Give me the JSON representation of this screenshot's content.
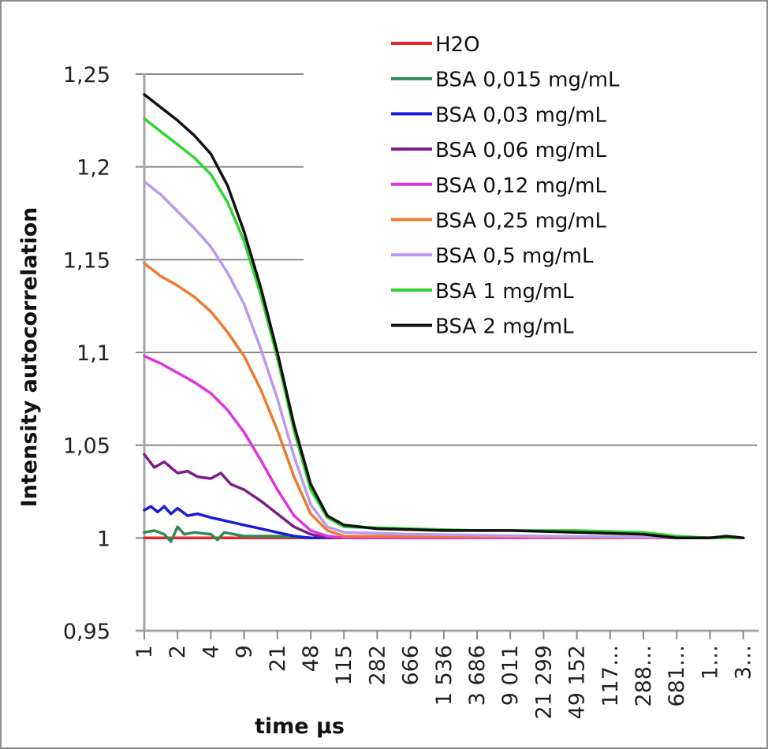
{
  "chart_data": {
    "type": "line",
    "title": "",
    "xlabel": "time µs",
    "ylabel": "Intensity autocorrelation",
    "ylim": [
      0.95,
      1.25
    ],
    "y_ticks": [
      {
        "value": 1.25,
        "label": "1,25"
      },
      {
        "value": 1.2,
        "label": "1,2"
      },
      {
        "value": 1.15,
        "label": "1,15"
      },
      {
        "value": 1.1,
        "label": "1,1"
      },
      {
        "value": 1.05,
        "label": "1,05"
      },
      {
        "value": 1.0,
        "label": "1"
      },
      {
        "value": 0.95,
        "label": "0,95"
      }
    ],
    "x_scale": "log (category index)",
    "x_tick_labels": [
      "1",
      "2",
      "4",
      "9",
      "21",
      "48",
      "115",
      "282",
      "666",
      "1 536",
      "3 686",
      "9 011",
      "21 299",
      "49 152",
      "117…",
      "288…",
      "681…",
      "1…",
      "3…"
    ],
    "grid": "horizontal",
    "legend_position": "top-right",
    "series": [
      {
        "name": "H2O",
        "color": "#e8262a",
        "points": [
          [
            0,
            1.0
          ],
          [
            18,
            1.0
          ]
        ]
      },
      {
        "name": "BSA 0,015 mg/mL",
        "color": "#2e8b57",
        "points": [
          [
            0,
            1.003
          ],
          [
            0.3,
            1.004
          ],
          [
            0.6,
            1.002
          ],
          [
            0.8,
            0.998
          ],
          [
            1,
            1.006
          ],
          [
            1.2,
            1.002
          ],
          [
            1.5,
            1.003
          ],
          [
            2,
            1.002
          ],
          [
            2.2,
            0.999
          ],
          [
            2.4,
            1.003
          ],
          [
            3,
            1.001
          ],
          [
            4,
            1.001
          ],
          [
            5,
            1.0
          ],
          [
            18,
            1.0
          ]
        ]
      },
      {
        "name": "BSA 0,03 mg/mL",
        "color": "#1a1adb",
        "points": [
          [
            0,
            1.015
          ],
          [
            0.2,
            1.017
          ],
          [
            0.4,
            1.014
          ],
          [
            0.6,
            1.017
          ],
          [
            0.8,
            1.013
          ],
          [
            1,
            1.016
          ],
          [
            1.3,
            1.012
          ],
          [
            1.6,
            1.013
          ],
          [
            2,
            1.011
          ],
          [
            2.5,
            1.009
          ],
          [
            3,
            1.007
          ],
          [
            3.5,
            1.005
          ],
          [
            4,
            1.003
          ],
          [
            4.5,
            1.001
          ],
          [
            5,
            1.0
          ],
          [
            18,
            1.0
          ]
        ]
      },
      {
        "name": "BSA 0,06 mg/mL",
        "color": "#7b1f84",
        "points": [
          [
            0,
            1.045
          ],
          [
            0.3,
            1.038
          ],
          [
            0.6,
            1.041
          ],
          [
            1,
            1.035
          ],
          [
            1.3,
            1.036
          ],
          [
            1.6,
            1.033
          ],
          [
            2,
            1.032
          ],
          [
            2.3,
            1.035
          ],
          [
            2.6,
            1.029
          ],
          [
            3,
            1.026
          ],
          [
            3.5,
            1.02
          ],
          [
            4,
            1.013
          ],
          [
            4.5,
            1.006
          ],
          [
            5,
            1.002
          ],
          [
            5.5,
            1.0
          ],
          [
            18,
            1.0
          ]
        ]
      },
      {
        "name": "BSA 0,12 mg/mL",
        "color": "#e033e0",
        "points": [
          [
            0,
            1.098
          ],
          [
            0.5,
            1.094
          ],
          [
            1,
            1.089
          ],
          [
            1.5,
            1.084
          ],
          [
            2,
            1.078
          ],
          [
            2.5,
            1.069
          ],
          [
            3,
            1.057
          ],
          [
            3.5,
            1.042
          ],
          [
            4,
            1.026
          ],
          [
            4.5,
            1.012
          ],
          [
            5,
            1.004
          ],
          [
            5.5,
            1.001
          ],
          [
            6,
            1.0
          ],
          [
            18,
            1.0
          ]
        ]
      },
      {
        "name": "BSA 0,25 mg/mL",
        "color": "#ef7a2f",
        "points": [
          [
            0,
            1.148
          ],
          [
            0.5,
            1.141
          ],
          [
            1,
            1.136
          ],
          [
            1.5,
            1.13
          ],
          [
            2,
            1.122
          ],
          [
            2.5,
            1.111
          ],
          [
            3,
            1.098
          ],
          [
            3.5,
            1.08
          ],
          [
            4,
            1.058
          ],
          [
            4.5,
            1.033
          ],
          [
            5,
            1.013
          ],
          [
            5.5,
            1.004
          ],
          [
            6,
            1.001
          ],
          [
            18,
            1.0
          ]
        ]
      },
      {
        "name": "BSA 0,5 mg/mL",
        "color": "#b89af0",
        "points": [
          [
            0,
            1.192
          ],
          [
            0.5,
            1.185
          ],
          [
            1,
            1.176
          ],
          [
            1.5,
            1.167
          ],
          [
            2,
            1.157
          ],
          [
            2.5,
            1.143
          ],
          [
            3,
            1.126
          ],
          [
            3.5,
            1.102
          ],
          [
            4,
            1.075
          ],
          [
            4.5,
            1.044
          ],
          [
            5,
            1.018
          ],
          [
            5.5,
            1.006
          ],
          [
            6,
            1.003
          ],
          [
            8,
            1.002
          ],
          [
            12,
            1.001
          ],
          [
            18,
            1.0
          ]
        ]
      },
      {
        "name": "BSA 1 mg/mL",
        "color": "#2fd62f",
        "points": [
          [
            0,
            1.226
          ],
          [
            0.5,
            1.219
          ],
          [
            1,
            1.212
          ],
          [
            1.5,
            1.205
          ],
          [
            2,
            1.196
          ],
          [
            2.5,
            1.181
          ],
          [
            3,
            1.16
          ],
          [
            3.5,
            1.131
          ],
          [
            4,
            1.097
          ],
          [
            4.5,
            1.058
          ],
          [
            5,
            1.026
          ],
          [
            5.5,
            1.011
          ],
          [
            6,
            1.006
          ],
          [
            8,
            1.005
          ],
          [
            10,
            1.004
          ],
          [
            13,
            1.004
          ],
          [
            15,
            1.003
          ],
          [
            16,
            1.001
          ],
          [
            17,
            1.0
          ],
          [
            18,
            1.0
          ]
        ]
      },
      {
        "name": "BSA 2 mg/mL",
        "color": "#111111",
        "points": [
          [
            0,
            1.239
          ],
          [
            0.5,
            1.232
          ],
          [
            1,
            1.225
          ],
          [
            1.5,
            1.217
          ],
          [
            2,
            1.207
          ],
          [
            2.5,
            1.19
          ],
          [
            3,
            1.165
          ],
          [
            3.5,
            1.135
          ],
          [
            4,
            1.1
          ],
          [
            4.5,
            1.061
          ],
          [
            5,
            1.029
          ],
          [
            5.5,
            1.012
          ],
          [
            6,
            1.007
          ],
          [
            7,
            1.005
          ],
          [
            9,
            1.004
          ],
          [
            11,
            1.004
          ],
          [
            13,
            1.003
          ],
          [
            15,
            1.002
          ],
          [
            16,
            1.0
          ],
          [
            17,
            1.0
          ],
          [
            17.5,
            1.001
          ],
          [
            18,
            1.0
          ]
        ]
      }
    ]
  }
}
